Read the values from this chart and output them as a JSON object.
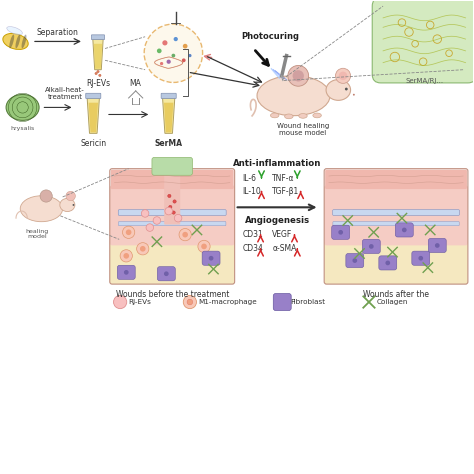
{
  "bg_color": "#ffffff",
  "top_labels": {
    "separation": "Separation",
    "rj_evs": "RJ-EVs",
    "alkali": "Alkali-heat-\ntreatment",
    "ma": "MA",
    "sericin": "Sericin",
    "serma": "SerMA",
    "photocuring": "Photocuring",
    "wound_model": "Wound healing\nmouse model",
    "serma_rj": "SerMA/RJ..."
  },
  "bottom_labels": {
    "before": "Wounds before the treatment",
    "after": "Wounds after the",
    "anti_inflammation": "Anti-inflammation",
    "il6": "IL-6",
    "tnfa": "TNF-α",
    "il10": "IL-10",
    "tgfb1": "TGF-β1",
    "angiogenesis": "Angiogenesis",
    "cd31": "CD31",
    "vegf": "VEGF",
    "cd34": "CD34",
    "asma": "α-SMA"
  },
  "green_down": "#2ca02c",
  "red_up": "#d62728",
  "skin": {
    "epidermis_top": "#f2c4bc",
    "epidermis": "#f0b8ae",
    "dermis": "#f5ccc4",
    "fat": "#f5e8c0",
    "wound_fill": "#b8dca8",
    "vessel": "#c8d8f0"
  },
  "ev_circle_fill": "#fdf8ec",
  "ev_circle_edge": "#e8b870",
  "tissue_fill": "#d4eac0",
  "tissue_edge": "#8ab870"
}
